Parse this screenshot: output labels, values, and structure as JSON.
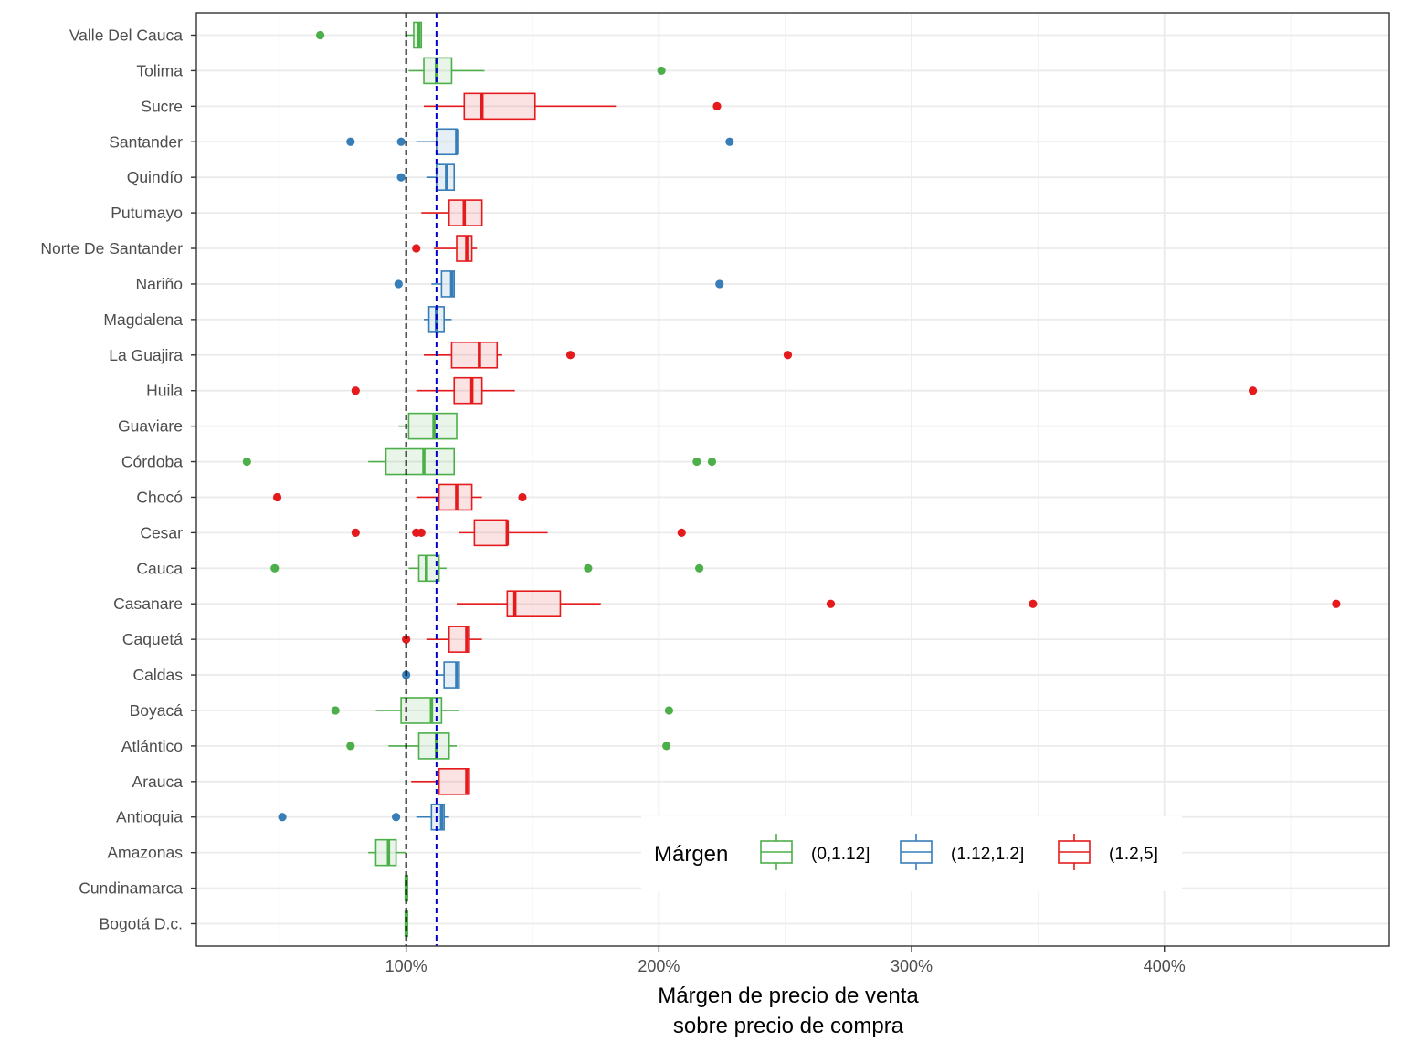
{
  "chart_data": {
    "type": "boxplot",
    "orientation": "horizontal",
    "xlabel": [
      "Márgen de precio de venta",
      "sobre precio de compra"
    ],
    "ylabel": "",
    "x_ticks": [
      {
        "value": 1,
        "label": "100%"
      },
      {
        "value": 2,
        "label": "200%"
      },
      {
        "value": 3,
        "label": "300%"
      },
      {
        "value": 4,
        "label": "400%"
      }
    ],
    "xlim": [
      0.17,
      4.89
    ],
    "grid": true,
    "reference_lines": [
      {
        "value": 1.0,
        "color": "#000000",
        "style": "dashed"
      },
      {
        "value": 1.12,
        "color": "#0000CC",
        "style": "dashed"
      }
    ],
    "legend": {
      "title": "Márgen",
      "position": "bottom-right",
      "items": [
        {
          "key": "low",
          "label": "(0,1.12]",
          "color": "#4DAF4A"
        },
        {
          "key": "mid",
          "label": "(1.12,1.2]",
          "color": "#377EB8"
        },
        {
          "key": "high",
          "label": "(1.2,5]",
          "color": "#E41A1C"
        }
      ]
    },
    "categories": [
      {
        "name": "Valle Del Cauca",
        "group": "low",
        "whisker_low": 1.0,
        "q1": 1.03,
        "median": 1.05,
        "q3": 1.06,
        "whisker_high": 1.06,
        "outliers": [
          0.66
        ]
      },
      {
        "name": "Tolima",
        "group": "low",
        "whisker_low": 1.01,
        "q1": 1.07,
        "median": 1.12,
        "q3": 1.18,
        "whisker_high": 1.31,
        "outliers": [
          2.01
        ]
      },
      {
        "name": "Sucre",
        "group": "high",
        "whisker_low": 1.07,
        "q1": 1.23,
        "median": 1.3,
        "q3": 1.51,
        "whisker_high": 1.83,
        "outliers": [
          2.23
        ]
      },
      {
        "name": "Santander",
        "group": "mid",
        "whisker_low": 1.04,
        "q1": 1.12,
        "median": 1.2,
        "q3": 1.2,
        "whisker_high": 1.2,
        "outliers": [
          0.78,
          0.98,
          2.28
        ]
      },
      {
        "name": "Quindío",
        "group": "mid",
        "whisker_low": 1.08,
        "q1": 1.12,
        "median": 1.16,
        "q3": 1.19,
        "whisker_high": 1.19,
        "outliers": [
          0.98
        ]
      },
      {
        "name": "Putumayo",
        "group": "high",
        "whisker_low": 1.06,
        "q1": 1.17,
        "median": 1.23,
        "q3": 1.3,
        "whisker_high": 1.3,
        "outliers": []
      },
      {
        "name": "Norte De Santander",
        "group": "high",
        "whisker_low": 1.11,
        "q1": 1.2,
        "median": 1.24,
        "q3": 1.26,
        "whisker_high": 1.28,
        "outliers": [
          1.04
        ]
      },
      {
        "name": "Nariño",
        "group": "mid",
        "whisker_low": 1.1,
        "q1": 1.14,
        "median": 1.18,
        "q3": 1.19,
        "whisker_high": 1.19,
        "outliers": [
          0.97,
          2.24
        ]
      },
      {
        "name": "Magdalena",
        "group": "mid",
        "whisker_low": 1.07,
        "q1": 1.09,
        "median": 1.12,
        "q3": 1.15,
        "whisker_high": 1.18,
        "outliers": []
      },
      {
        "name": "La Guajira",
        "group": "high",
        "whisker_low": 1.07,
        "q1": 1.18,
        "median": 1.29,
        "q3": 1.36,
        "whisker_high": 1.38,
        "outliers": [
          1.65,
          2.51
        ]
      },
      {
        "name": "Huila",
        "group": "high",
        "whisker_low": 1.04,
        "q1": 1.19,
        "median": 1.26,
        "q3": 1.3,
        "whisker_high": 1.43,
        "outliers": [
          0.8,
          4.35
        ]
      },
      {
        "name": "Guaviare",
        "group": "low",
        "whisker_low": 0.97,
        "q1": 1.01,
        "median": 1.11,
        "q3": 1.2,
        "whisker_high": 1.2,
        "outliers": []
      },
      {
        "name": "Córdoba",
        "group": "low",
        "whisker_low": 0.85,
        "q1": 0.92,
        "median": 1.07,
        "q3": 1.19,
        "whisker_high": 1.19,
        "outliers": [
          0.37,
          2.15,
          2.21
        ]
      },
      {
        "name": "Chocó",
        "group": "high",
        "whisker_low": 1.04,
        "q1": 1.13,
        "median": 1.2,
        "q3": 1.26,
        "whisker_high": 1.3,
        "outliers": [
          0.49,
          1.46
        ]
      },
      {
        "name": "Cesar",
        "group": "high",
        "whisker_low": 1.21,
        "q1": 1.27,
        "median": 1.4,
        "q3": 1.4,
        "whisker_high": 1.56,
        "outliers": [
          0.8,
          1.04,
          1.06,
          2.09
        ]
      },
      {
        "name": "Cauca",
        "group": "low",
        "whisker_low": 1.01,
        "q1": 1.05,
        "median": 1.08,
        "q3": 1.13,
        "whisker_high": 1.16,
        "outliers": [
          0.48,
          1.72,
          2.16
        ]
      },
      {
        "name": "Casanare",
        "group": "high",
        "whisker_low": 1.2,
        "q1": 1.4,
        "median": 1.43,
        "q3": 1.61,
        "whisker_high": 1.77,
        "outliers": [
          2.68,
          3.48,
          4.68
        ]
      },
      {
        "name": "Caquetá",
        "group": "high",
        "whisker_low": 1.08,
        "q1": 1.17,
        "median": 1.24,
        "q3": 1.25,
        "whisker_high": 1.3,
        "outliers": [
          1.0
        ]
      },
      {
        "name": "Caldas",
        "group": "mid",
        "whisker_low": 1.12,
        "q1": 1.15,
        "median": 1.2,
        "q3": 1.21,
        "whisker_high": 1.21,
        "outliers": [
          1.0
        ]
      },
      {
        "name": "Boyacá",
        "group": "low",
        "whisker_low": 0.88,
        "q1": 0.98,
        "median": 1.1,
        "q3": 1.14,
        "whisker_high": 1.21,
        "outliers": [
          0.72,
          2.04
        ]
      },
      {
        "name": "Atlántico",
        "group": "low",
        "whisker_low": 0.93,
        "q1": 1.05,
        "median": 1.12,
        "q3": 1.17,
        "whisker_high": 1.2,
        "outliers": [
          0.78,
          2.03
        ]
      },
      {
        "name": "Arauca",
        "group": "high",
        "whisker_low": 1.02,
        "q1": 1.13,
        "median": 1.24,
        "q3": 1.25,
        "whisker_high": 1.25,
        "outliers": []
      },
      {
        "name": "Antioquia",
        "group": "mid",
        "whisker_low": 1.04,
        "q1": 1.1,
        "median": 1.14,
        "q3": 1.15,
        "whisker_high": 1.17,
        "outliers": [
          0.51,
          0.96
        ]
      },
      {
        "name": "Amazonas",
        "group": "low",
        "whisker_low": 0.85,
        "q1": 0.88,
        "median": 0.93,
        "q3": 0.96,
        "whisker_high": 1.0,
        "outliers": []
      },
      {
        "name": "Cundinamarca",
        "group": "low",
        "whisker_low": 1.0,
        "q1": 1.0,
        "median": 1.0,
        "q3": 1.0,
        "whisker_high": 1.0,
        "outliers": []
      },
      {
        "name": "Bogotá D.c.",
        "group": "low",
        "whisker_low": 1.0,
        "q1": 1.0,
        "median": 1.0,
        "q3": 1.0,
        "whisker_high": 1.0,
        "outliers": []
      }
    ]
  }
}
